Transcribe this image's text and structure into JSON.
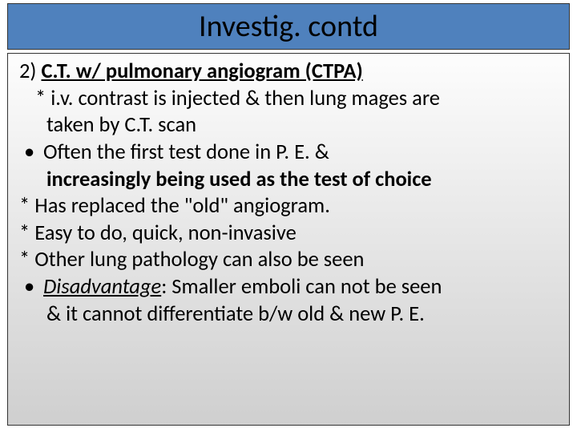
{
  "colors": {
    "title_bar_bg": "#4f81bd",
    "border": "#333333",
    "text": "#000000",
    "body_gradient_top": "#fdfdfd",
    "body_gradient_mid": "#e6e6e6",
    "body_gradient_bottom": "#cfcfcf"
  },
  "typography": {
    "title_fontsize_pt": 28,
    "body_fontsize_pt": 20,
    "font_family": "Calibri"
  },
  "title": "Investig. contd",
  "content": {
    "l1_prefix": "2) ",
    "l1_main": "C.T. w/ pulmonary angiogram (CTPA)",
    "l2": "* i.v. contrast is injected & then lung mages are",
    "l3": "taken by C.T. scan",
    "l4_bullet": "•",
    "l4_text": "Often the first test done in P. E. &",
    "l5": "increasingly being used as the test of choice",
    "l6": "* Has replaced the \"old\" angiogram.",
    "l7": "* Easy to do, quick, non-invasive",
    "l8": "* Other lung pathology can also be seen",
    "l9_bullet": "•",
    "l9_label": "Disadvantage",
    "l9_rest": ": Smaller emboli can not be seen",
    "l10": "& it cannot differentiate b/w old & new P. E."
  }
}
